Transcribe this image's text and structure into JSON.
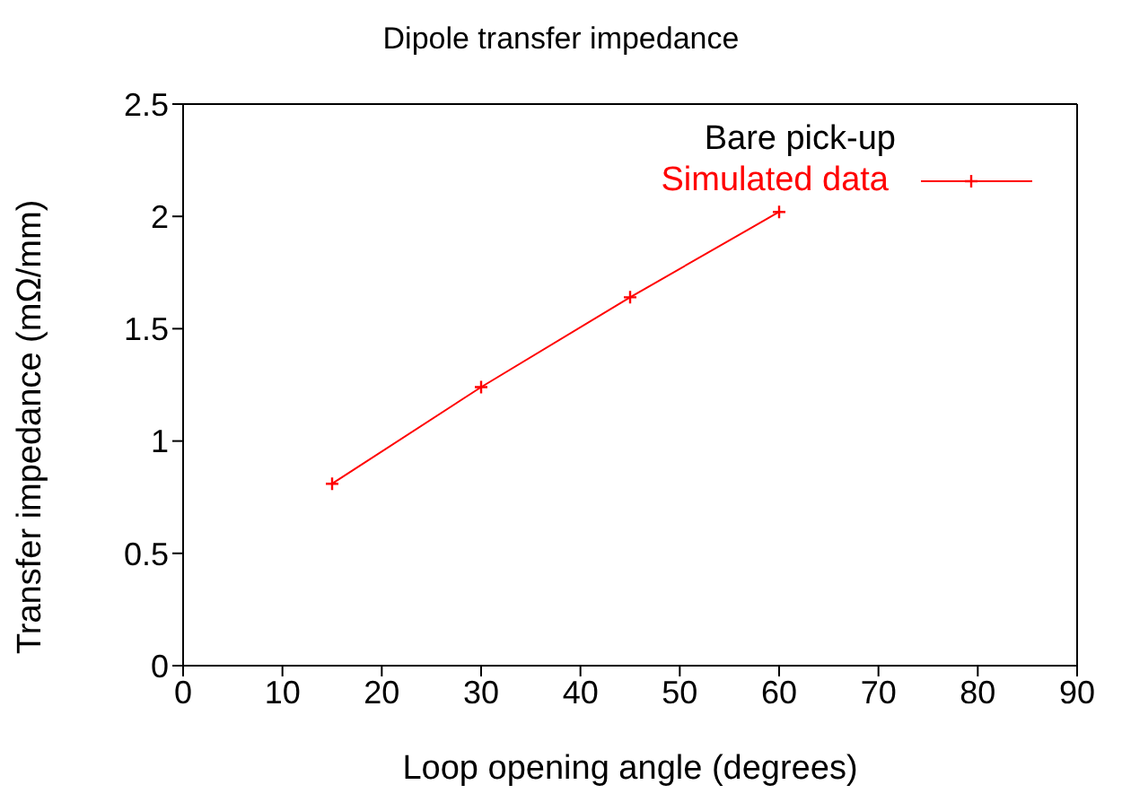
{
  "chart_data": {
    "type": "line",
    "title": "Dipole transfer impedance",
    "xlabel": "Loop opening angle (degrees)",
    "ylabel": "Transfer impedance (mΩ/mm)",
    "legend_title": "Bare pick-up",
    "x": [
      15,
      30,
      45,
      60
    ],
    "series": [
      {
        "name": "Simulated data",
        "color": "#ff0000",
        "values": [
          0.81,
          1.24,
          1.64,
          2.02
        ]
      }
    ],
    "xlim": [
      0,
      90
    ],
    "xticks": [
      0,
      10,
      20,
      30,
      40,
      50,
      60,
      70,
      80,
      90
    ],
    "ylim": [
      0,
      2.5
    ],
    "yticks": [
      0,
      0.5,
      1,
      1.5,
      2,
      2.5
    ],
    "grid": false,
    "legend": "top right",
    "marker": "cross",
    "line_style": "solid"
  }
}
